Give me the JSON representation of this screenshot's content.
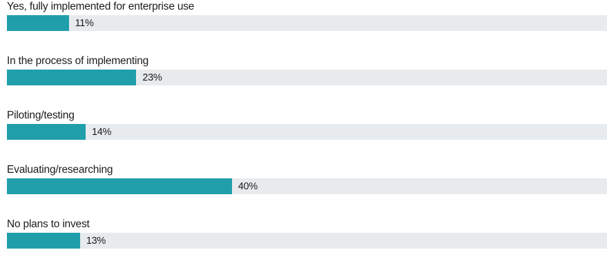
{
  "colors": {
    "bar": "#209fab",
    "track": "#e8ebee",
    "text": "#1c1c1c"
  },
  "chart_data": {
    "type": "bar",
    "orientation": "horizontal",
    "unit": "%",
    "xlim": [
      0,
      100
    ],
    "grid": false,
    "categories": [
      "Yes, fully implemented for enterprise use",
      "In the process of implementing",
      "Piloting/testing",
      "Evaluating/researching",
      "No plans to invest"
    ],
    "values": [
      11,
      23,
      14,
      40,
      13
    ],
    "value_labels": [
      "11%",
      "23%",
      "14%",
      "40%",
      "13%"
    ]
  }
}
